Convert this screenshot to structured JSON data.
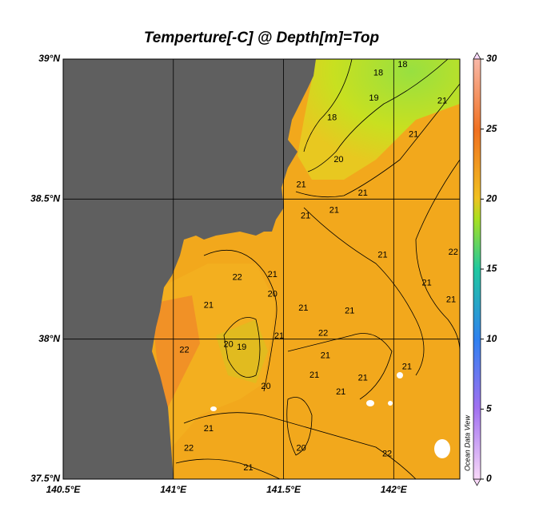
{
  "chart_data": {
    "type": "contour-map",
    "title": "Temperture[-C] @ Depth[m]=Top",
    "xlim": [
      140.5,
      142.3
    ],
    "ylim": [
      37.5,
      39
    ],
    "xticks": [
      {
        "value": 140.5,
        "label": "140.5°E"
      },
      {
        "value": 141,
        "label": "141°E"
      },
      {
        "value": 141.5,
        "label": "141.5°E"
      },
      {
        "value": 142,
        "label": "142°E"
      }
    ],
    "yticks": [
      {
        "value": 37.5,
        "label": "37.5°N"
      },
      {
        "value": 38,
        "label": "38°N"
      },
      {
        "value": 38.5,
        "label": "38.5°N"
      },
      {
        "value": 39,
        "label": "39°N"
      }
    ],
    "grid": true,
    "colorbar": {
      "lim": [
        0,
        30
      ],
      "ticks": [
        0,
        5,
        10,
        15,
        20,
        25,
        30
      ]
    },
    "contour_labels": [
      {
        "lon": 142.04,
        "lat": 38.98,
        "value": 18
      },
      {
        "lon": 141.93,
        "lat": 38.95,
        "value": 18
      },
      {
        "lon": 141.91,
        "lat": 38.86,
        "value": 19
      },
      {
        "lon": 141.72,
        "lat": 38.79,
        "value": 18
      },
      {
        "lon": 141.75,
        "lat": 38.64,
        "value": 20
      },
      {
        "lon": 142.22,
        "lat": 38.85,
        "value": 21
      },
      {
        "lon": 142.09,
        "lat": 38.73,
        "value": 21
      },
      {
        "lon": 141.86,
        "lat": 38.52,
        "value": 21
      },
      {
        "lon": 141.58,
        "lat": 38.55,
        "value": 21
      },
      {
        "lon": 141.6,
        "lat": 38.44,
        "value": 21
      },
      {
        "lon": 141.73,
        "lat": 38.46,
        "value": 21
      },
      {
        "lon": 141.95,
        "lat": 38.3,
        "value": 21
      },
      {
        "lon": 142.27,
        "lat": 38.31,
        "value": 22
      },
      {
        "lon": 142.15,
        "lat": 38.2,
        "value": 21
      },
      {
        "lon": 142.26,
        "lat": 38.14,
        "value": 21
      },
      {
        "lon": 141.29,
        "lat": 38.22,
        "value": 22
      },
      {
        "lon": 141.45,
        "lat": 38.23,
        "value": 21
      },
      {
        "lon": 141.45,
        "lat": 38.16,
        "value": 20
      },
      {
        "lon": 141.16,
        "lat": 38.12,
        "value": 21
      },
      {
        "lon": 141.59,
        "lat": 38.11,
        "value": 21
      },
      {
        "lon": 141.8,
        "lat": 38.1,
        "value": 21
      },
      {
        "lon": 141.68,
        "lat": 38.02,
        "value": 22
      },
      {
        "lon": 141.48,
        "lat": 38.01,
        "value": 21
      },
      {
        "lon": 141.25,
        "lat": 37.98,
        "value": 20
      },
      {
        "lon": 141.31,
        "lat": 37.97,
        "value": 19
      },
      {
        "lon": 141.05,
        "lat": 37.96,
        "value": 22
      },
      {
        "lon": 141.69,
        "lat": 37.94,
        "value": 21
      },
      {
        "lon": 141.64,
        "lat": 37.87,
        "value": 21
      },
      {
        "lon": 141.42,
        "lat": 37.83,
        "value": 20
      },
      {
        "lon": 141.76,
        "lat": 37.81,
        "value": 21
      },
      {
        "lon": 142.06,
        "lat": 37.9,
        "value": 21
      },
      {
        "lon": 141.86,
        "lat": 37.86,
        "value": 21
      },
      {
        "lon": 141.58,
        "lat": 37.61,
        "value": 20
      },
      {
        "lon": 141.16,
        "lat": 37.68,
        "value": 21
      },
      {
        "lon": 141.07,
        "lat": 37.61,
        "value": 22
      },
      {
        "lon": 141.97,
        "lat": 37.59,
        "value": 22
      },
      {
        "lon": 141.34,
        "lat": 37.54,
        "value": 21
      }
    ],
    "watermark": "Ocean Data View"
  }
}
